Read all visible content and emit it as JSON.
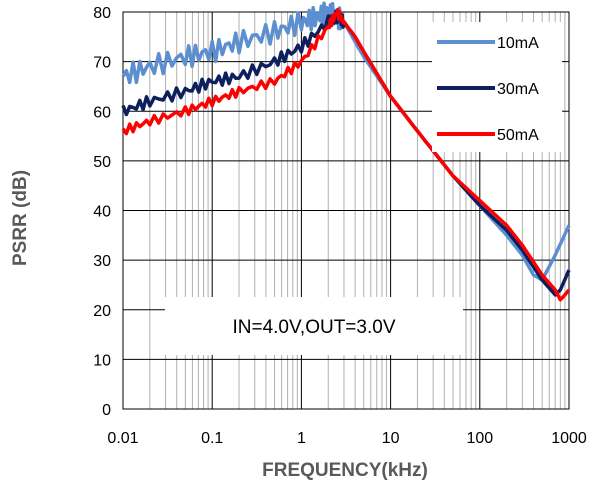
{
  "chart_data": {
    "type": "line",
    "title": "",
    "xlabel": "FREQUENCY(kHz)",
    "ylabel": "PSRR  (dB)",
    "x_scale": "log",
    "xlim": [
      0.01,
      1000
    ],
    "ylim": [
      0,
      80
    ],
    "x_ticks": [
      "0.01",
      "0.1",
      "1",
      "10",
      "100",
      "1000"
    ],
    "y_ticks": [
      "0",
      "10",
      "20",
      "30",
      "40",
      "50",
      "60",
      "70",
      "80"
    ],
    "grid": true,
    "legend_position": "top-right",
    "annotation": "IN=4.0V,OUT=3.0V",
    "series": [
      {
        "name": "10mA",
        "color": "#5b8fcf",
        "x": [
          0.01,
          0.02,
          0.05,
          0.1,
          0.2,
          0.5,
          1,
          1.5,
          2,
          2.5,
          3,
          4,
          5,
          10,
          20,
          50,
          100,
          200,
          300,
          400,
          500,
          700,
          1000
        ],
        "y": [
          67,
          69,
          71,
          72,
          74,
          76,
          78,
          79,
          80,
          79,
          78,
          74,
          71,
          63,
          56,
          47,
          41,
          35,
          31,
          27,
          26,
          31,
          37
        ]
      },
      {
        "name": "30mA",
        "color": "#0d1f5c",
        "x": [
          0.01,
          0.02,
          0.05,
          0.1,
          0.2,
          0.5,
          1,
          2,
          2.5,
          3,
          4,
          5,
          10,
          20,
          50,
          100,
          200,
          300,
          500,
          700,
          800,
          1000
        ],
        "y": [
          60,
          62,
          64,
          66,
          67,
          70,
          73,
          78,
          79,
          78,
          75,
          72,
          63,
          56,
          47,
          41,
          36,
          32,
          26,
          23,
          24,
          28
        ]
      },
      {
        "name": "50mA",
        "color": "#ff0000",
        "x": [
          0.01,
          0.02,
          0.05,
          0.1,
          0.2,
          0.5,
          1,
          2,
          2.5,
          3,
          4,
          5,
          10,
          20,
          50,
          100,
          200,
          300,
          500,
          700,
          800,
          900,
          1000
        ],
        "y": [
          56,
          58,
          60,
          62,
          64,
          66,
          70,
          77,
          80,
          78,
          75,
          72,
          63,
          56,
          47,
          42,
          37,
          33,
          27,
          24,
          22,
          23,
          24
        ]
      }
    ]
  }
}
